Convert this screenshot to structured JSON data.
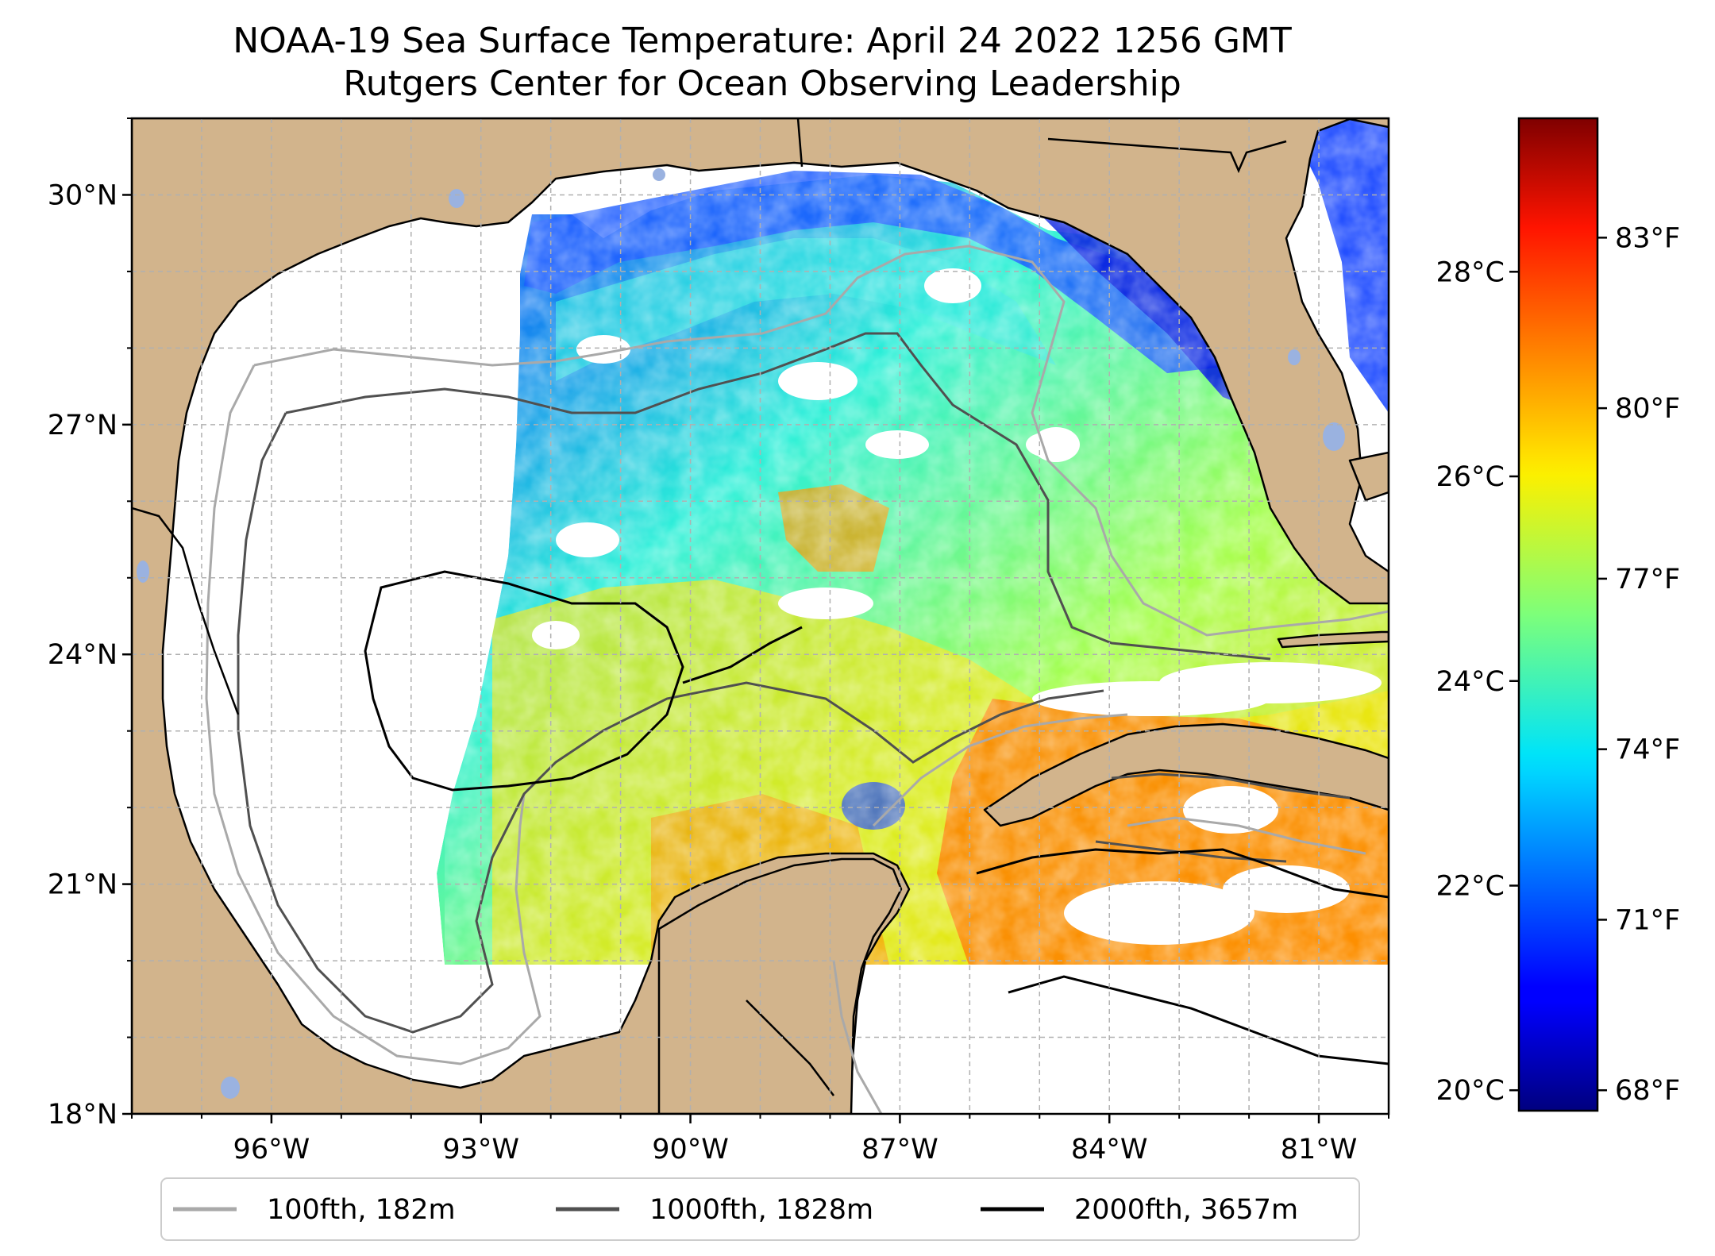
{
  "title": {
    "line1": "NOAA-19 Sea Surface Temperature: April 24 2022 1256 GMT",
    "line2": "Rutgers Center for Ocean Observing Leadership"
  },
  "map": {
    "lon_range": [
      -98,
      -80
    ],
    "lat_range": [
      18,
      31
    ],
    "lat_ticks": [
      {
        "value": 18,
        "label": "18°N"
      },
      {
        "value": 21,
        "label": "21°N"
      },
      {
        "value": 24,
        "label": "24°N"
      },
      {
        "value": 27,
        "label": "27°N"
      },
      {
        "value": 30,
        "label": "30°N"
      }
    ],
    "lon_ticks": [
      {
        "value": -96,
        "label": "96°W"
      },
      {
        "value": -93,
        "label": "93°W"
      },
      {
        "value": -90,
        "label": "90°W"
      },
      {
        "value": -87,
        "label": "87°W"
      },
      {
        "value": -84,
        "label": "84°W"
      },
      {
        "value": -81,
        "label": "81°W"
      }
    ],
    "grid": true,
    "land_color": "#d2b48c",
    "no_data_color": "#ffffff"
  },
  "colorbar": {
    "colormap": "jet",
    "celsius_range": [
      19.8,
      29.5
    ],
    "celsius_ticks": [
      {
        "value": 20,
        "label": "20°C"
      },
      {
        "value": 22,
        "label": "22°C"
      },
      {
        "value": 24,
        "label": "24°C"
      },
      {
        "value": 26,
        "label": "26°C"
      },
      {
        "value": 28,
        "label": "28°C"
      }
    ],
    "fahrenheit_ticks": [
      {
        "value": 68,
        "label": "68°F"
      },
      {
        "value": 71,
        "label": "71°F"
      },
      {
        "value": 74,
        "label": "74°F"
      },
      {
        "value": 77,
        "label": "77°F"
      },
      {
        "value": 80,
        "label": "80°F"
      },
      {
        "value": 83,
        "label": "83°F"
      }
    ]
  },
  "legend": {
    "placement": "bottom",
    "items": [
      {
        "label": "100fth, 182m",
        "color": "#a9a9a9"
      },
      {
        "label": "1000fth, 1828m",
        "color": "#505050"
      },
      {
        "label": "2000fth, 3657m",
        "color": "#000000"
      }
    ]
  }
}
